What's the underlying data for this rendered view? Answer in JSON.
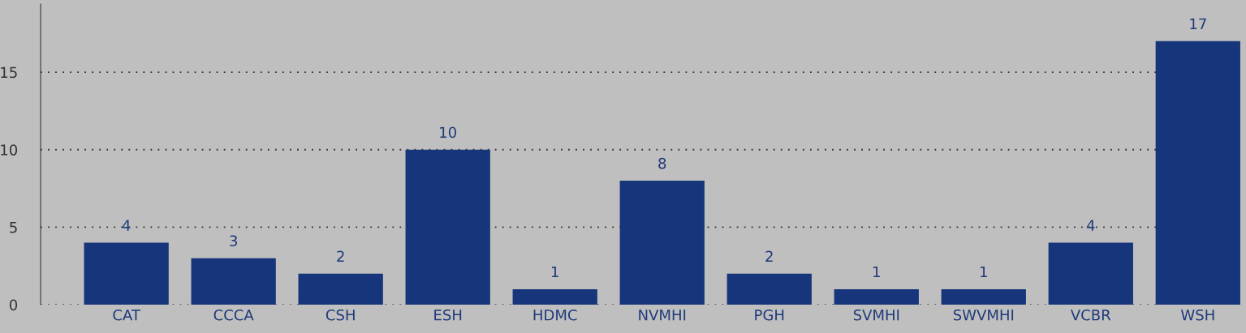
{
  "chart_data": {
    "type": "bar",
    "categories": [
      "CAT",
      "CCCA",
      "CSH",
      "ESH",
      "HDMC",
      "NVMHI",
      "PGH",
      "SVMHI",
      "SWVMHI",
      "VCBR",
      "WSH"
    ],
    "values": [
      4,
      3,
      2,
      10,
      1,
      8,
      2,
      1,
      1,
      4,
      17
    ],
    "color": "#17357a",
    "ylim": [
      0,
      19.4
    ],
    "yticks": [
      0,
      5,
      10,
      15
    ],
    "grid": "y",
    "data_labels": true
  }
}
